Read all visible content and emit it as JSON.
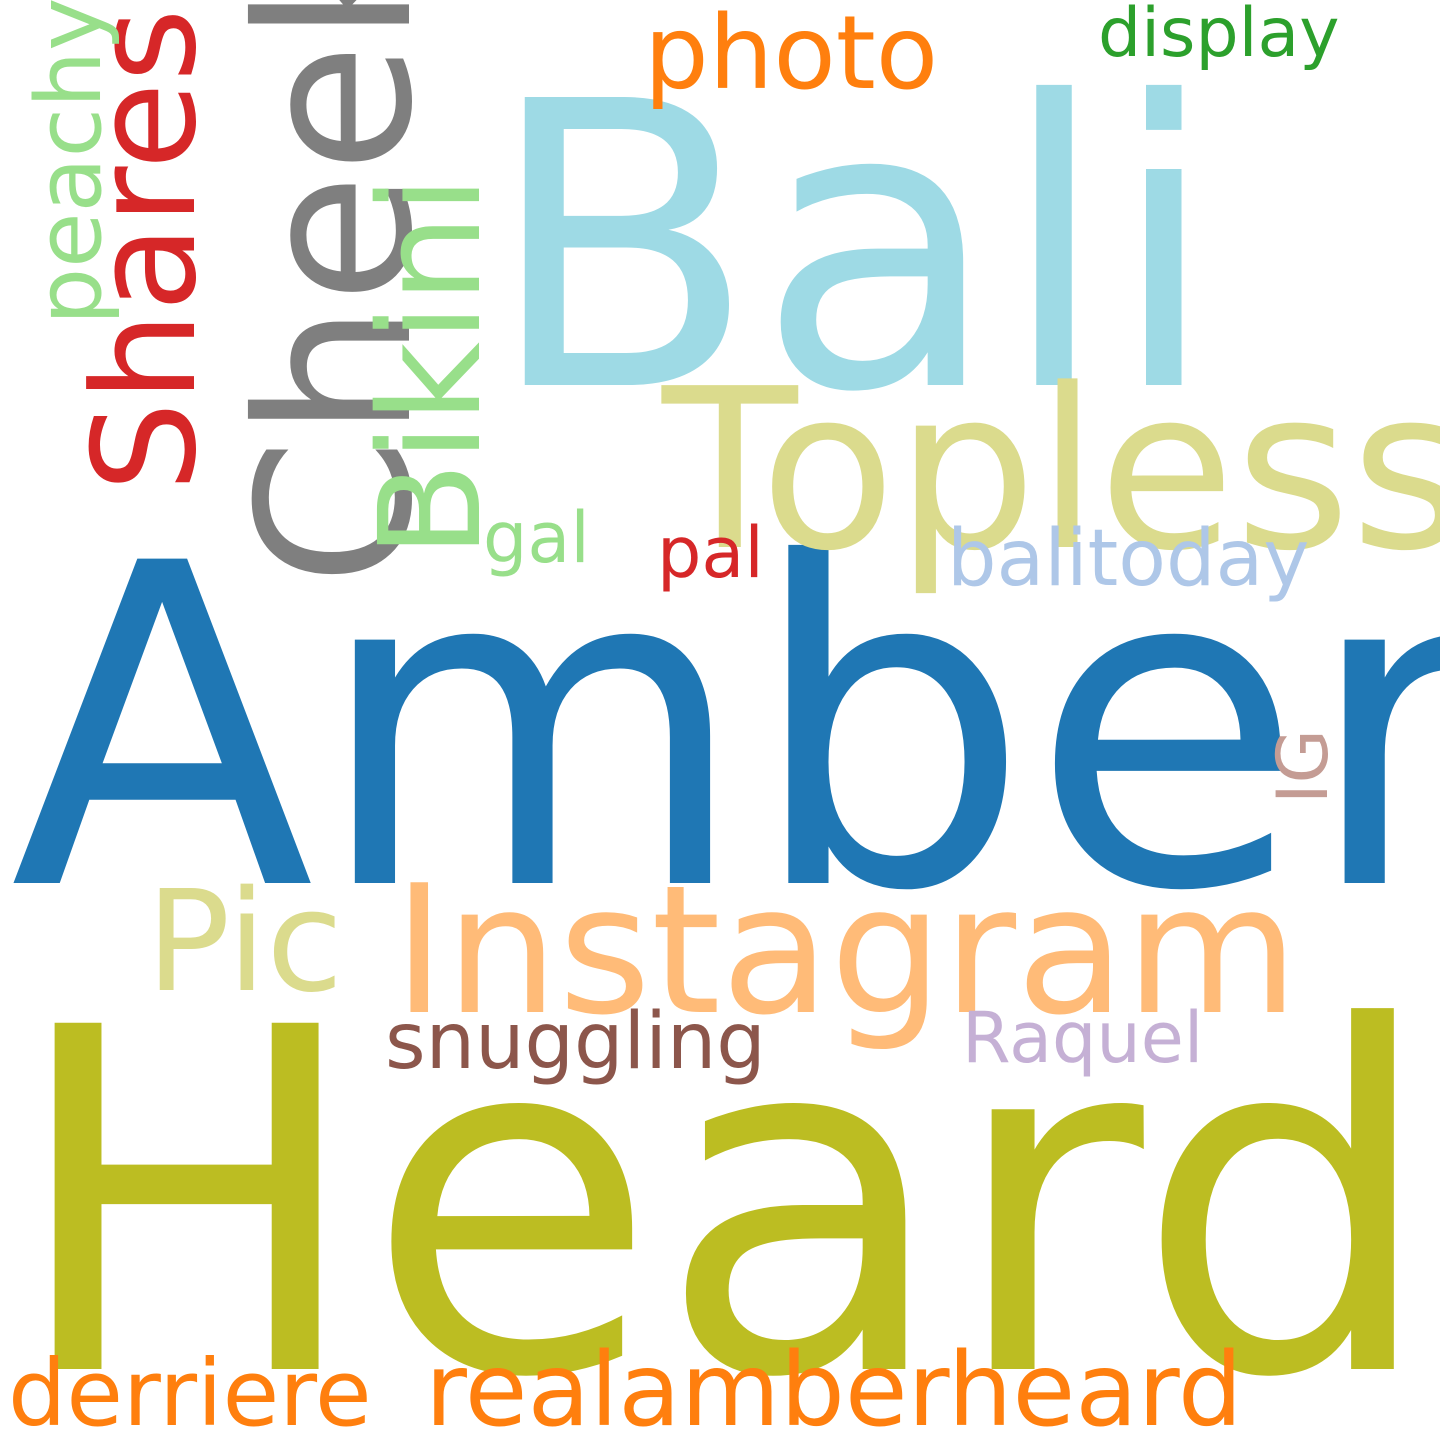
{
  "words": [
    {
      "id": "amber",
      "text": "Amber",
      "color": "#1f77b4",
      "orientation": "horizontal"
    },
    {
      "id": "heard",
      "text": "Heard",
      "color": "#bcbd22",
      "orientation": "horizontal"
    },
    {
      "id": "bali",
      "text": "Bali",
      "color": "#9edae5",
      "orientation": "horizontal"
    },
    {
      "id": "topless",
      "text": "Topless",
      "color": "#dbdb8d",
      "orientation": "horizontal"
    },
    {
      "id": "instagram",
      "text": "Instagram",
      "color": "#ffbb78",
      "orientation": "horizontal"
    },
    {
      "id": "cheeky",
      "text": "Cheeky",
      "color": "#7f7f7f",
      "orientation": "vertical"
    },
    {
      "id": "shares",
      "text": "Shares",
      "color": "#d62728",
      "orientation": "vertical"
    },
    {
      "id": "bikini",
      "text": "Bikini",
      "color": "#98df8a",
      "orientation": "vertical"
    },
    {
      "id": "pic",
      "text": "Pic",
      "color": "#dbdb8d",
      "orientation": "horizontal"
    },
    {
      "id": "photo",
      "text": "photo",
      "color": "#ff7f0e",
      "orientation": "horizontal"
    },
    {
      "id": "realamberheard",
      "text": "realamberheard",
      "color": "#ff7f0e",
      "orientation": "horizontal"
    },
    {
      "id": "derriere",
      "text": "derriere",
      "color": "#ff7f0e",
      "orientation": "horizontal"
    },
    {
      "id": "display",
      "text": "display",
      "color": "#2ca02c",
      "orientation": "horizontal"
    },
    {
      "id": "peachy",
      "text": "peachy",
      "color": "#98df8a",
      "orientation": "vertical"
    },
    {
      "id": "balitoday",
      "text": "balitoday",
      "color": "#aec7e8",
      "orientation": "horizontal"
    },
    {
      "id": "snuggling",
      "text": "snuggling",
      "color": "#8c564b",
      "orientation": "horizontal"
    },
    {
      "id": "raquel",
      "text": "Raquel",
      "color": "#c5b0d5",
      "orientation": "horizontal"
    },
    {
      "id": "gal",
      "text": "gal",
      "color": "#98df8a",
      "orientation": "horizontal"
    },
    {
      "id": "pal",
      "text": "pal",
      "color": "#d62728",
      "orientation": "horizontal"
    },
    {
      "id": "ig",
      "text": "IG",
      "color": "#c49c94",
      "orientation": "vertical"
    }
  ]
}
